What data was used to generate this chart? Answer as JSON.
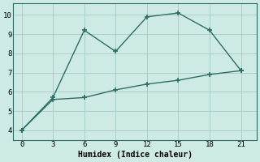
{
  "line1_x": [
    0,
    3,
    6,
    9,
    12,
    15,
    18,
    21
  ],
  "line1_y": [
    4,
    5.7,
    9.2,
    8.1,
    9.9,
    10.1,
    9.2,
    7.1
  ],
  "line2_x": [
    0,
    3,
    6,
    9,
    12,
    15,
    18,
    21
  ],
  "line2_y": [
    4,
    5.6,
    5.7,
    6.1,
    6.4,
    6.6,
    6.9,
    7.1
  ],
  "line_color": "#2e6e62",
  "bg_color": "#ceeae4",
  "grid_color": "#aacec8",
  "xlabel": "Humidex (Indice chaleur)",
  "xlabel_fontsize": 7,
  "xticks": [
    0,
    3,
    6,
    9,
    12,
    15,
    18,
    21
  ],
  "yticks": [
    4,
    5,
    6,
    7,
    8,
    9,
    10
  ],
  "ylim": [
    3.5,
    10.6
  ],
  "xlim": [
    -0.8,
    22.5
  ]
}
